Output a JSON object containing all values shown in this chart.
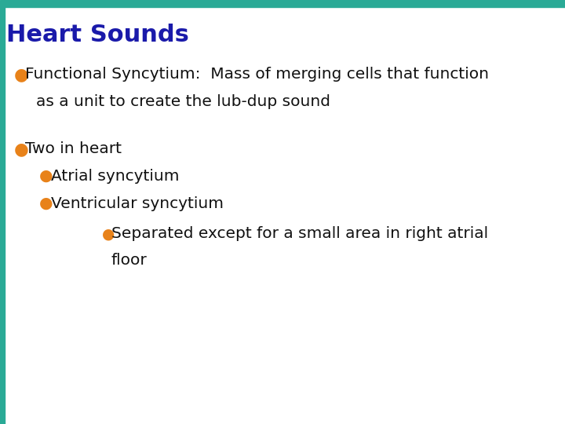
{
  "title": "Heart Sounds",
  "title_color": "#1a1aaa",
  "title_fontsize": 22,
  "background_color": "#ffffff",
  "bar_color": "#2aaa96",
  "bullet_color": "#e8821a",
  "bullet1_line1": "Functional Syncytium:  Mass of merging cells that function",
  "bullet1_line2": "as a unit to create the lub-dup sound",
  "bullet2_text": "Two in heart",
  "sub_bullet1": "Atrial syncytium",
  "sub_bullet2": "Ventricular syncytium",
  "subsub_line1": "Separated except for a small area in right atrial",
  "subsub_line2": "floor",
  "text_color": "#111111",
  "text_fontsize": 14.5
}
